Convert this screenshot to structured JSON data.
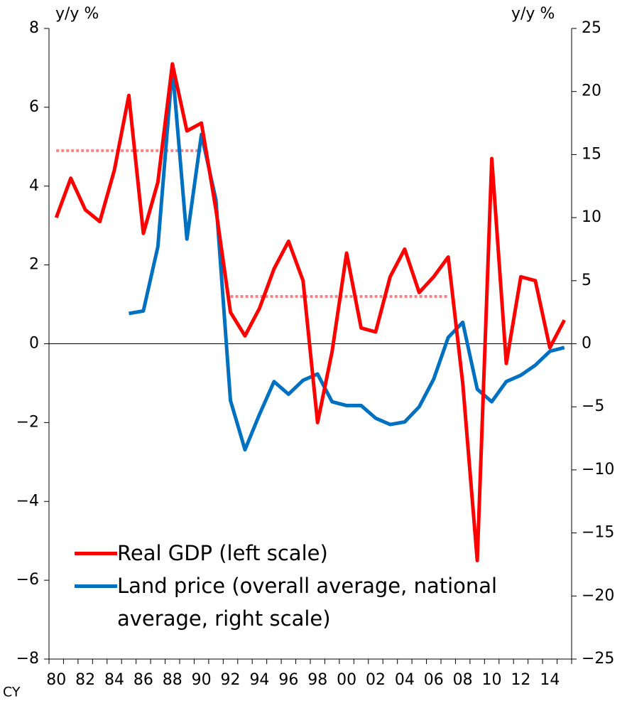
{
  "chart_data": {
    "type": "line",
    "y_label": "y/y %",
    "y2_label": "y/y %",
    "x_label": "CY",
    "categories": [
      "80",
      null,
      "82",
      null,
      "84",
      null,
      "86",
      null,
      "88",
      null,
      "90",
      null,
      "92",
      null,
      "94",
      null,
      "96",
      null,
      "98",
      null,
      "00",
      null,
      "02",
      null,
      "04",
      null,
      "06",
      null,
      "08",
      null,
      "10",
      null,
      "12",
      null,
      "14",
      null
    ],
    "series": [
      {
        "name": "Real GDP (left scale)",
        "color": "#ff0000",
        "axis": "y",
        "values": [
          3.2,
          4.2,
          3.4,
          3.1,
          4.4,
          6.3,
          2.8,
          4.1,
          7.1,
          5.4,
          5.6,
          3.4,
          0.8,
          0.2,
          0.9,
          1.9,
          2.6,
          1.6,
          -2.0,
          -0.2,
          2.3,
          0.4,
          0.3,
          1.7,
          2.4,
          1.3,
          1.7,
          2.2,
          -1.0,
          -5.5,
          4.7,
          -0.5,
          1.7,
          1.6,
          -0.1,
          0.6
        ]
      },
      {
        "name": "Land price (overall average, national average, right scale)",
        "color": "#0070c0",
        "axis": "y2",
        "values": [
          null,
          null,
          null,
          null,
          null,
          2.4,
          2.6,
          7.7,
          21.9,
          8.3,
          16.6,
          11.4,
          -4.5,
          -8.4,
          -5.6,
          -3.0,
          -4.0,
          -2.9,
          -2.4,
          -4.6,
          -4.9,
          -4.9,
          -5.9,
          -6.4,
          -6.2,
          -5.0,
          -2.8,
          0.5,
          1.7,
          -3.6,
          -4.6,
          -3.0,
          -2.5,
          -1.7,
          -0.6,
          -0.3
        ]
      },
      {
        "color": "#f4868a",
        "axis": "y",
        "dashed": true,
        "values": [
          4.9,
          4.9,
          4.9,
          4.9,
          4.9,
          4.9,
          4.9,
          4.9,
          4.9,
          4.9,
          4.9,
          null,
          1.2,
          1.2,
          1.2,
          1.2,
          1.2,
          1.2,
          1.2,
          1.2,
          1.2,
          1.2,
          1.2,
          1.2,
          1.2,
          1.2,
          1.2,
          1.2,
          null,
          null,
          null,
          null,
          null,
          null,
          null,
          null
        ]
      }
    ],
    "ylim": [
      -8,
      8
    ],
    "yticks": [
      {
        "value": -8,
        "label": "−8"
      },
      {
        "value": -6,
        "label": "−6"
      },
      {
        "value": -4,
        "label": "−4"
      },
      {
        "value": -2,
        "label": "−2"
      },
      0,
      2,
      4,
      6,
      8
    ],
    "y2lim": [
      -25,
      25
    ],
    "y2ticks": [
      {
        "value": -25,
        "label": "−25"
      },
      {
        "value": -20,
        "label": "−20"
      },
      {
        "value": -15,
        "label": "−15"
      },
      {
        "value": -10,
        "label": "−10"
      },
      {
        "value": -5,
        "label": "−5"
      },
      0,
      5,
      10,
      15,
      20,
      25
    ],
    "grid": false
  }
}
